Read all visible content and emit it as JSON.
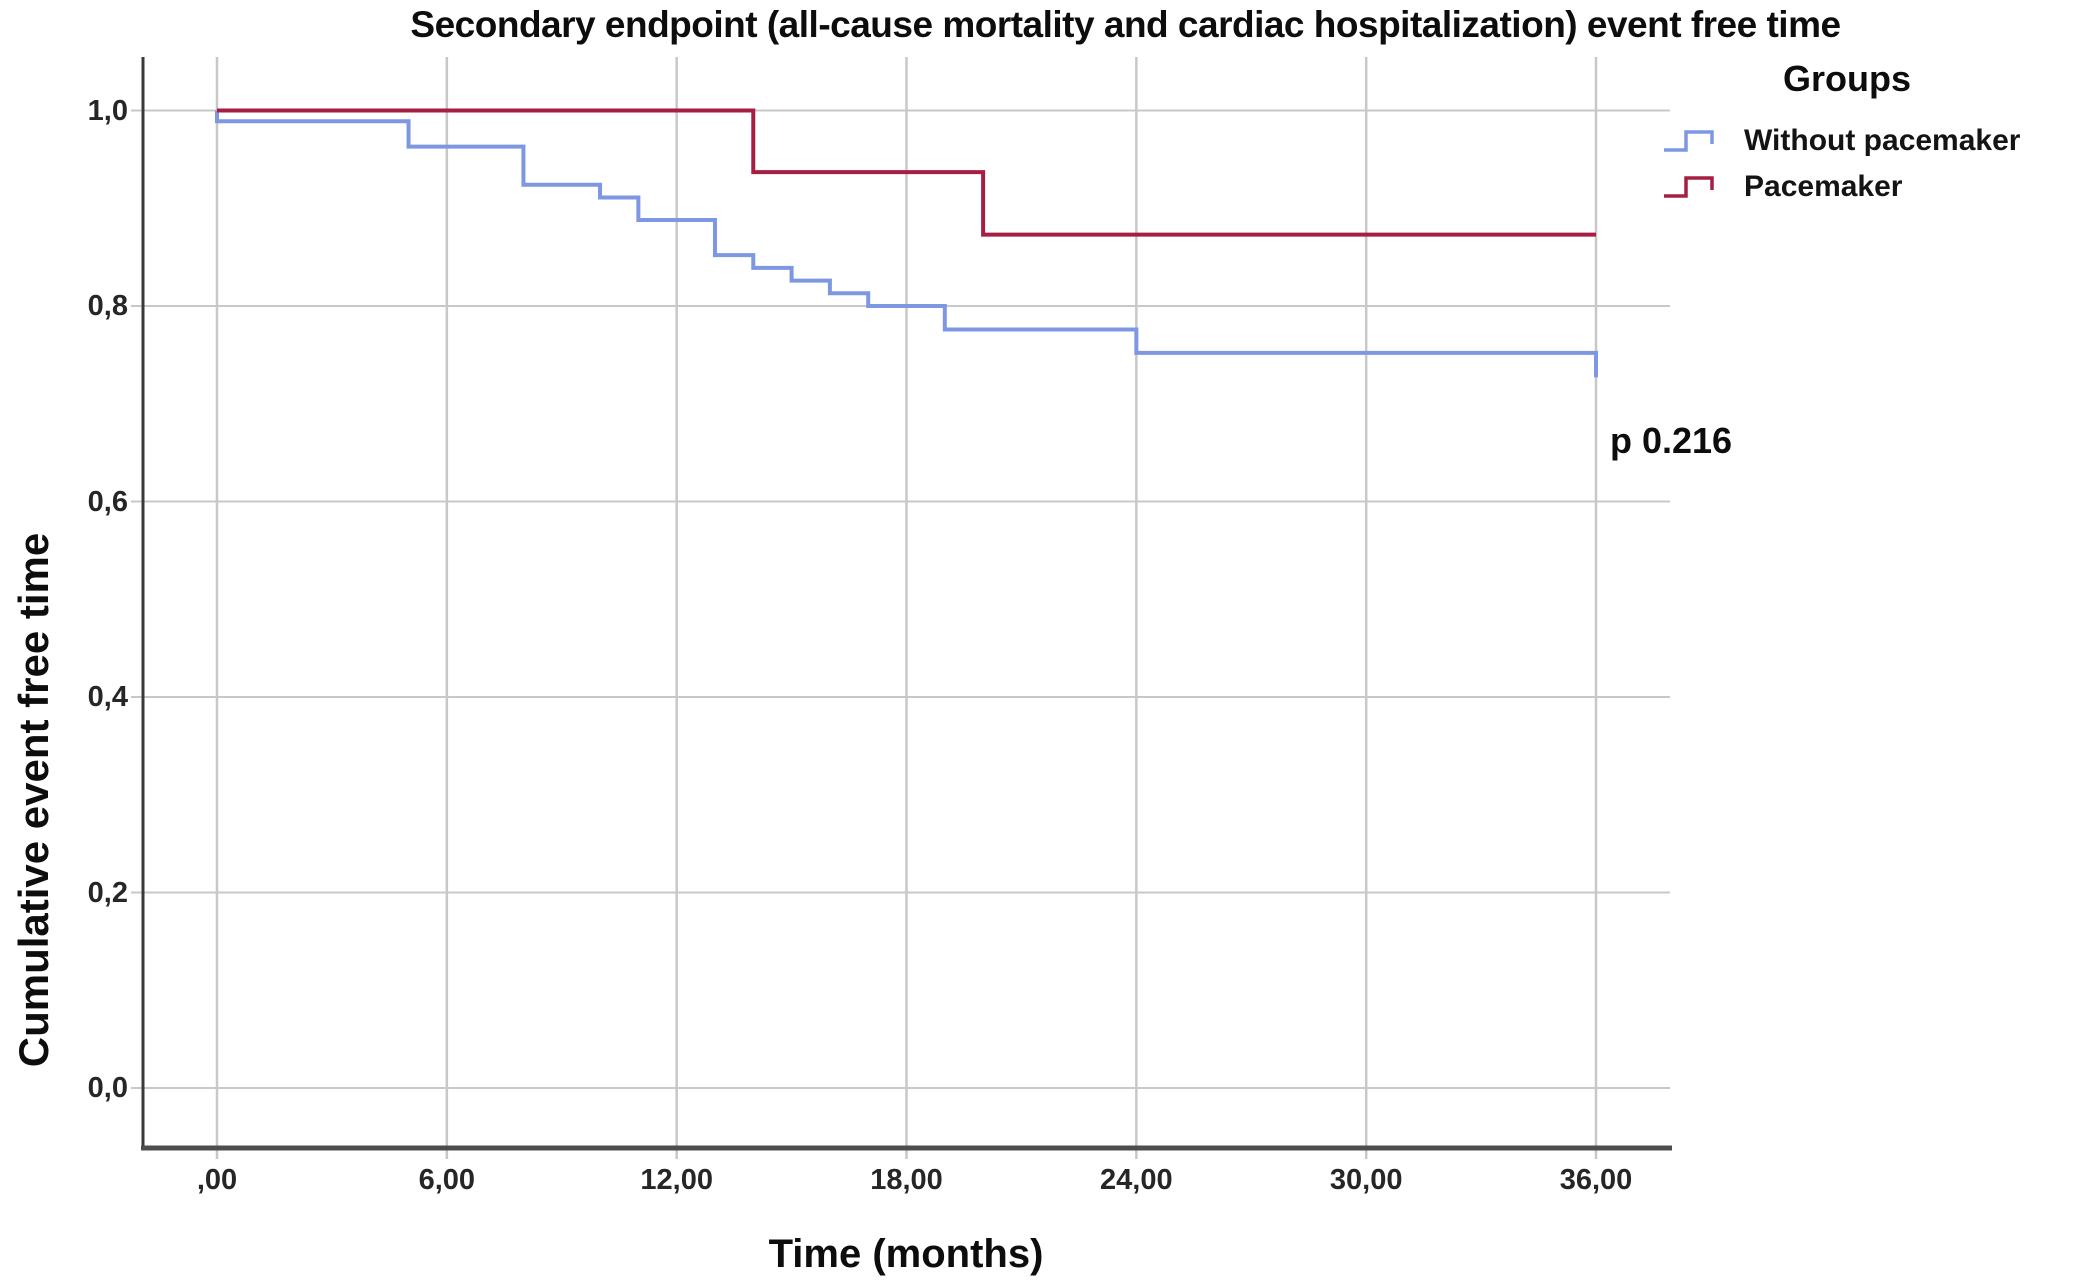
{
  "page": {
    "background": "#ffffff"
  },
  "chart_data": {
    "type": "line",
    "subtype": "kaplan-meier-step",
    "title": "Secondary endpoint (all-cause mortality and cardiac hospitalization) event free time",
    "xlabel": "Time (months)",
    "ylabel": "Cumulative event free time",
    "xlim": [
      0,
      36
    ],
    "ylim": [
      0.0,
      1.0
    ],
    "grid": true,
    "legend": {
      "title": "Groups",
      "position": "top-right"
    },
    "annotation": {
      "text": "p 0.216"
    },
    "x_ticks": {
      "values": [
        0,
        6,
        12,
        18,
        24,
        30,
        36
      ],
      "labels": [
        ",00",
        "6,00",
        "12,00",
        "18,00",
        "24,00",
        "30,00",
        "36,00"
      ]
    },
    "y_ticks": {
      "values": [
        1.0,
        0.8,
        0.6,
        0.4,
        0.2,
        0.0
      ],
      "labels": [
        "1,0",
        "0,8",
        "0,6",
        "0,4",
        "0,2",
        "0,0"
      ]
    },
    "series": [
      {
        "name": "Without pacemaker",
        "color": "#7D97E3",
        "points": [
          [
            0,
            1.0
          ],
          [
            0,
            0.989
          ],
          [
            5,
            0.963
          ],
          [
            8,
            0.924
          ],
          [
            10,
            0.911
          ],
          [
            11,
            0.888
          ],
          [
            13,
            0.852
          ],
          [
            14,
            0.839
          ],
          [
            15,
            0.826
          ],
          [
            16,
            0.813
          ],
          [
            17,
            0.8
          ],
          [
            19,
            0.776
          ],
          [
            24,
            0.752
          ],
          [
            36,
            0.727
          ]
        ]
      },
      {
        "name": "Pacemaker",
        "color": "#A61E42",
        "points": [
          [
            0,
            1.0
          ],
          [
            14,
            0.937
          ],
          [
            20,
            0.873
          ],
          [
            36,
            0.873
          ]
        ]
      }
    ],
    "style": {
      "gridline_color": "#c8c8c8",
      "left_spine_color": "#3a3a3a",
      "bottom_spine_color": "#4d4d4d",
      "line_width": 4
    }
  }
}
